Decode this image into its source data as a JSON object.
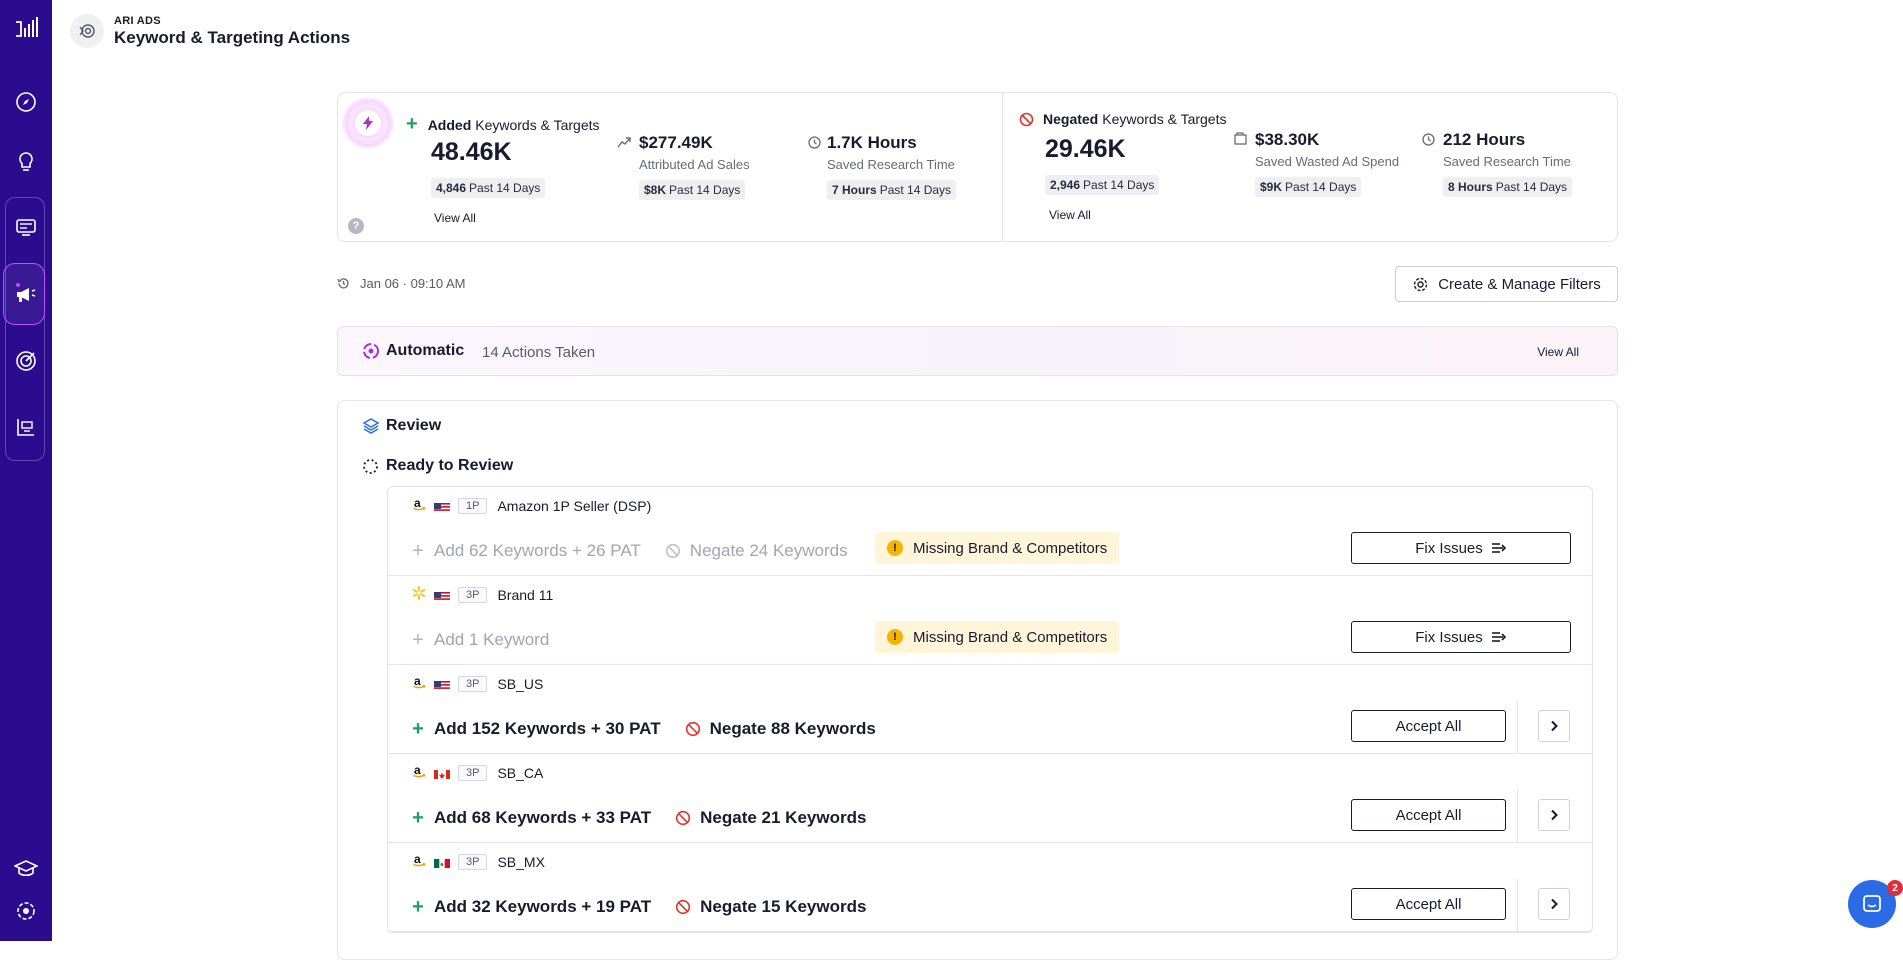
{
  "header": {
    "subtitle": "ARI ADS",
    "title": "Keyword & Targeting Actions"
  },
  "added": {
    "label_bold": "Added",
    "label_rest": "Keywords & Targets",
    "value": "48.46K",
    "pill_value": "4,846",
    "pill_period": "Past 14 Days",
    "view_all": "View All",
    "sales_value": "$277.49K",
    "sales_caption": "Attributed Ad Sales",
    "sales_pill_value": "$8K",
    "sales_pill_period": "Past 14 Days",
    "hours_value": "1.7K Hours",
    "hours_caption": "Saved Research Time",
    "hours_pill_value": "7 Hours",
    "hours_pill_period": "Past 14 Days"
  },
  "negated": {
    "label_bold": "Negated",
    "label_rest": "Keywords & Targets",
    "value": "29.46K",
    "pill_value": "2,946",
    "pill_period": "Past 14 Days",
    "view_all": "View All",
    "spend_value": "$38.30K",
    "spend_caption": "Saved Wasted Ad Spend",
    "spend_pill_value": "$9K",
    "spend_pill_period": "Past 14 Days",
    "hours_value": "212 Hours",
    "hours_caption": "Saved Research Time",
    "hours_pill_value": "8 Hours",
    "hours_pill_period": "Past 14 Days"
  },
  "help_glyph": "?",
  "timestamp": "Jan 06 · 09:10 AM",
  "filters_button": "Create & Manage Filters",
  "automatic": {
    "title": "Automatic",
    "count": "14 Actions Taken",
    "view_all": "View All"
  },
  "review": {
    "title": "Review",
    "subtitle": "Ready to Review"
  },
  "rows": [
    {
      "marketplace": "amazon",
      "flag": "us",
      "type": "1P",
      "account": "Amazon 1P Seller (DSP)",
      "add": "Add 62 Keywords + 26 PAT",
      "negate": "Negate 24 Keywords",
      "warning": "Missing Brand & Competitors",
      "button": "Fix Issues",
      "state": "issue"
    },
    {
      "marketplace": "walmart",
      "flag": "us",
      "type": "3P",
      "account": "Brand 11",
      "add": "Add 1 Keyword",
      "negate": "",
      "warning": "Missing Brand & Competitors",
      "button": "Fix Issues",
      "state": "issue"
    },
    {
      "marketplace": "amazon",
      "flag": "us",
      "type": "3P",
      "account": "SB_US",
      "add": "Add 152 Keywords + 30 PAT",
      "negate": "Negate 88 Keywords",
      "warning": "",
      "button": "Accept All",
      "state": "ready"
    },
    {
      "marketplace": "amazon",
      "flag": "ca",
      "type": "3P",
      "account": "SB_CA",
      "add": "Add 68 Keywords + 33 PAT",
      "negate": "Negate 21 Keywords",
      "warning": "",
      "button": "Accept All",
      "state": "ready"
    },
    {
      "marketplace": "amazon",
      "flag": "mx",
      "type": "3P",
      "account": "SB_MX",
      "add": "Add 32 Keywords + 19 PAT",
      "negate": "Negate 15 Keywords",
      "warning": "",
      "button": "Accept All",
      "state": "ready"
    }
  ],
  "chat_badge": "2",
  "colors": {
    "sidebar": "#2b0c8e",
    "add": "#1ea05a",
    "negate": "#e0352b",
    "warning": "#fff6d9"
  }
}
